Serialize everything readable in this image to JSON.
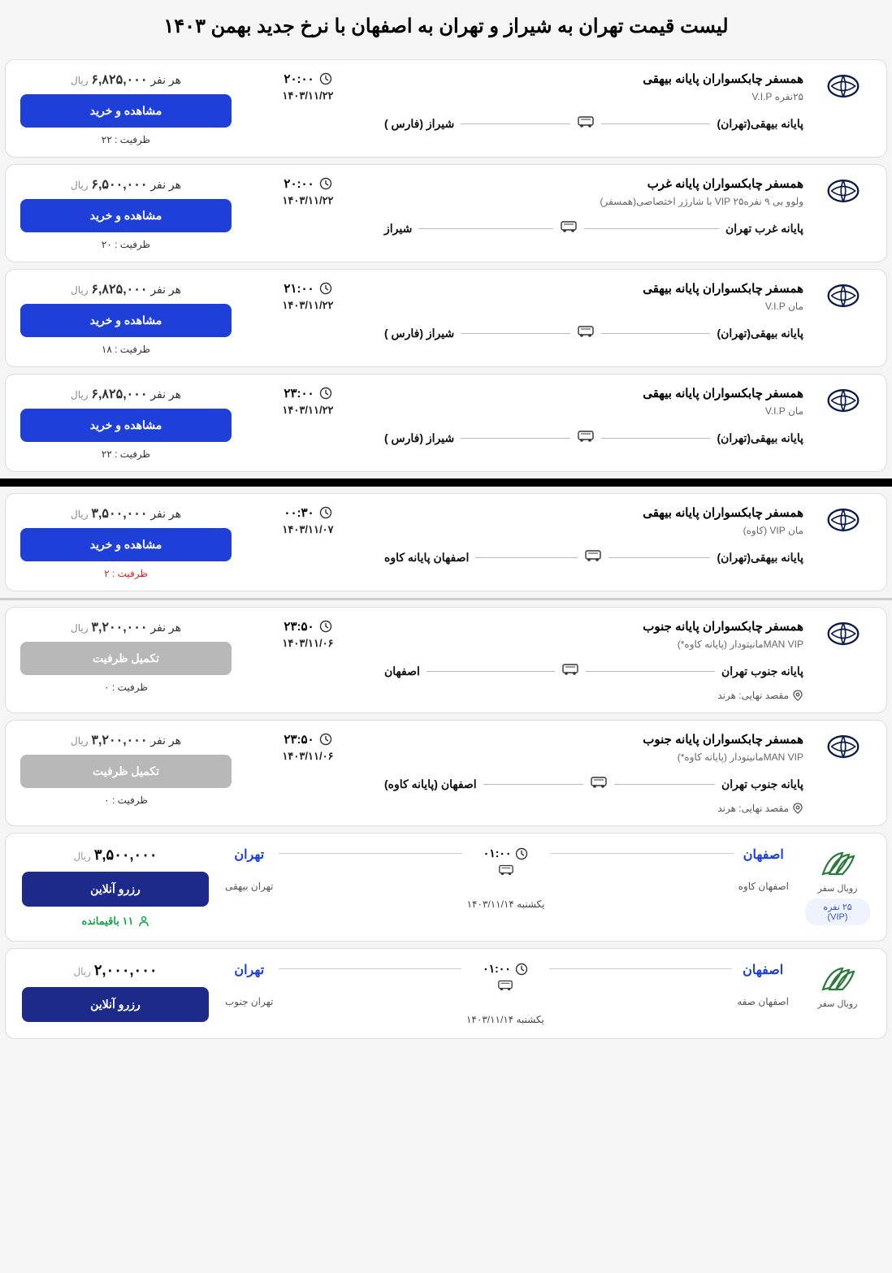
{
  "title": "لیست قیمت تهران به شیراز و تهران به اصفهان با نرخ جدید بهمن ۱۴۰۳",
  "labels": {
    "per_person": "هر نفر",
    "rial": "ریال",
    "buy": "مشاهده و خرید",
    "full": "تکمیل ظرفیت",
    "capacity": "ظرفیت :",
    "final_dest": "مقصد نهایی:",
    "reserve": "رزرو آنلاین",
    "remaining": "باقیمانده"
  },
  "tickets": [
    {
      "company": "همسفر چابکسواران پایانه بیهقی",
      "bus_type": "۲۵نفره V.I.P",
      "origin": "پایانه بیهقی(تهران)",
      "dest": "شیراز (فارس )",
      "time": "۲۰:۰۰",
      "date": "۱۴۰۳/۱۱/۲۲",
      "price": "۶,۸۲۵,۰۰۰",
      "capacity": "۲۲",
      "status": "available"
    },
    {
      "company": "همسفر چابکسواران پایانه غرب",
      "bus_type": "ولوو بی ۹ نفره۲۵ VIP با شارژر اختصاصی(همسفر)",
      "origin": "پایانه غرب تهران",
      "dest": "شیراز",
      "time": "۲۰:۰۰",
      "date": "۱۴۰۳/۱۱/۲۲",
      "price": "۶,۵۰۰,۰۰۰",
      "capacity": "۲۰",
      "status": "available"
    },
    {
      "company": "همسفر چابکسواران پایانه بیهقی",
      "bus_type": "مان V.I.P",
      "origin": "پایانه بیهقی(تهران)",
      "dest": "شیراز (فارس )",
      "time": "۲۱:۰۰",
      "date": "۱۴۰۳/۱۱/۲۲",
      "price": "۶,۸۲۵,۰۰۰",
      "capacity": "۱۸",
      "status": "available"
    },
    {
      "company": "همسفر چابکسواران پایانه بیهقی",
      "bus_type": "مان V.I.P",
      "origin": "پایانه بیهقی(تهران)",
      "dest": "شیراز (فارس )",
      "time": "۲۳:۰۰",
      "date": "۱۴۰۳/۱۱/۲۲",
      "price": "۶,۸۲۵,۰۰۰",
      "capacity": "۲۲",
      "status": "available"
    }
  ],
  "tickets2_first": {
    "company": "همسفر چابکسواران پایانه بیهقی",
    "bus_type": "مان VIP (کاوه)",
    "origin": "پایانه بیهقی(تهران)",
    "dest": "اصفهان پایانه کاوه",
    "time": "۰۰:۳۰",
    "date": "۱۴۰۳/۱۱/۰۷",
    "price": "۳,۵۰۰,۰۰۰",
    "capacity": "۲",
    "status": "low"
  },
  "tickets2": [
    {
      "company": "همسفر چابکسواران پایانه جنوب",
      "bus_type": "MAN VIPمانیتودار (پایانه کاوه*)",
      "origin": "پایانه جنوب تهران",
      "dest": "اصفهان",
      "final_dest": "هرند",
      "time": "۲۳:۵۰",
      "date": "۱۴۰۳/۱۱/۰۶",
      "price": "۳,۲۰۰,۰۰۰",
      "capacity": "۰",
      "status": "full"
    },
    {
      "company": "همسفر چابکسواران پایانه جنوب",
      "bus_type": "MAN VIPمانیتودار (پایانه کاوه*)",
      "origin": "پایانه جنوب تهران",
      "dest": "اصفهان (پایانه کاوه)",
      "final_dest": "هرند",
      "time": "۲۳:۵۰",
      "date": "۱۴۰۳/۱۱/۰۶",
      "price": "۳,۲۰۰,۰۰۰",
      "capacity": "۰",
      "status": "full"
    }
  ],
  "alt_tickets": [
    {
      "company": "رویال سفر",
      "vip_badge": "۲۵ نفره (VIP)",
      "origin_city": "اصفهان",
      "origin_terminal": "اصفهان کاوه",
      "dest_city": "تهران",
      "dest_terminal": "تهران بیهقی",
      "time": "۰۱:۰۰",
      "date": "یکشنبه  ۱۴۰۳/۱۱/۱۴",
      "price": "۳,۵۰۰,۰۰۰",
      "remaining": "۱۱"
    },
    {
      "company": "رویال سفر",
      "origin_city": "اصفهان",
      "origin_terminal": "اصفهان صفه",
      "dest_city": "تهران",
      "dest_terminal": "تهران جنوب",
      "time": "۰۱:۰۰",
      "date": "یکشنبه  ۱۴۰۳/۱۱/۱۴",
      "price": "۲,۰۰۰,۰۰۰"
    }
  ],
  "colors": {
    "primary": "#1e40d8",
    "reserve": "#1e2a8a",
    "gray_btn": "#b8b8b8",
    "green": "#16a34a",
    "red": "#e02020"
  }
}
